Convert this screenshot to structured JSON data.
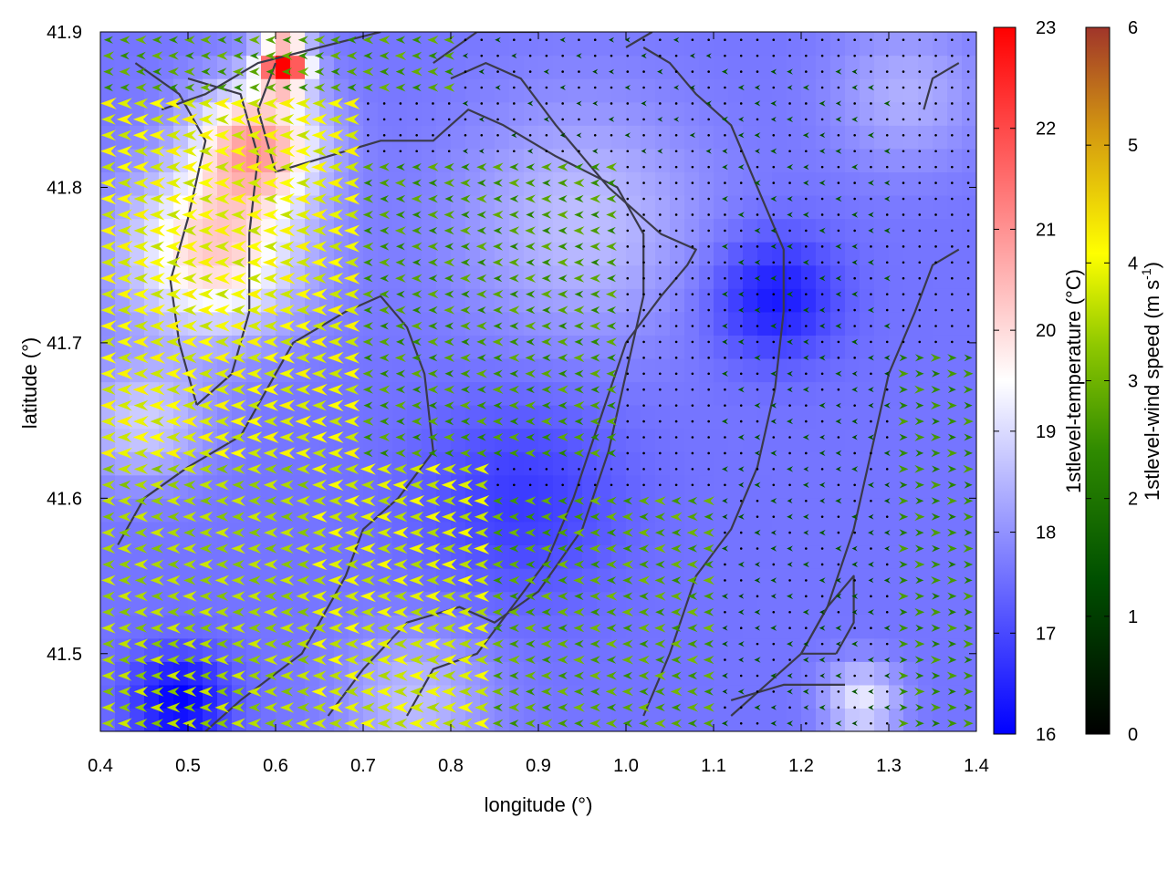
{
  "chart_data": {
    "type": "heatmap",
    "title": "",
    "xlabel": "longitude (°)",
    "ylabel": "latitude (°)",
    "xlim": [
      0.4,
      1.4
    ],
    "ylim": [
      41.45,
      41.9
    ],
    "x_ticks": [
      "0.4",
      "0.5",
      "0.6",
      "0.7",
      "0.8",
      "0.9",
      "1.0",
      "1.1",
      "1.2",
      "1.3",
      "1.4"
    ],
    "y_ticks": [
      "41.5",
      "41.6",
      "41.7",
      "41.8",
      "41.9"
    ],
    "temperature_colorbar": {
      "label": "1stlevel-temperature (°C)",
      "range": [
        16,
        23
      ],
      "ticks": [
        "16",
        "17",
        "18",
        "19",
        "20",
        "21",
        "22",
        "23"
      ],
      "colors": [
        "#0000ff",
        "#ffffff",
        "#ff0000"
      ]
    },
    "wind_colorbar": {
      "label_main": "1stlevel-wind speed (m s",
      "label_sup": "-1",
      "label_end": ")",
      "range": [
        0,
        6
      ],
      "ticks": [
        "0",
        "1",
        "2",
        "3",
        "4",
        "5",
        "6"
      ],
      "colors": [
        "#000000",
        "#006400",
        "#7fbf00",
        "#ffff00",
        "#d4a000",
        "#a03020"
      ]
    },
    "temperature_hotspots": [
      {
        "lon": 0.53,
        "lat": 41.76,
        "value": 20.2,
        "spread": 0.07
      },
      {
        "lon": 0.61,
        "lat": 41.88,
        "value": 22.6,
        "spread": 0.02
      },
      {
        "lon": 0.58,
        "lat": 41.83,
        "value": 20.6,
        "spread": 0.05
      },
      {
        "lon": 0.95,
        "lat": 41.78,
        "value": 18.6,
        "spread": 0.1
      },
      {
        "lon": 1.32,
        "lat": 41.86,
        "value": 18.4,
        "spread": 0.06
      },
      {
        "lon": 1.27,
        "lat": 41.47,
        "value": 19.2,
        "spread": 0.03
      },
      {
        "lon": 0.76,
        "lat": 41.47,
        "value": 18.6,
        "spread": 0.06
      },
      {
        "lon": 0.49,
        "lat": 41.47,
        "value": 16.0,
        "spread": 0.04
      },
      {
        "lon": 1.17,
        "lat": 41.73,
        "value": 16.3,
        "spread": 0.05
      },
      {
        "lon": 0.88,
        "lat": 41.6,
        "value": 16.8,
        "spread": 0.08
      },
      {
        "lon": 0.45,
        "lat": 41.65,
        "value": 18.8,
        "spread": 0.05
      }
    ],
    "temperature_base": 17.6,
    "wind_regions": [
      {
        "lon_range": [
          0.4,
          0.7
        ],
        "lat_range": [
          41.62,
          41.86
        ],
        "speed": 3.8,
        "dir": "west"
      },
      {
        "lon_range": [
          0.4,
          0.65
        ],
        "lat_range": [
          41.45,
          41.62
        ],
        "speed": 3.2,
        "dir": "west"
      },
      {
        "lon_range": [
          0.65,
          0.85
        ],
        "lat_range": [
          41.45,
          41.62
        ],
        "speed": 3.6,
        "dir": "west"
      },
      {
        "lon_range": [
          0.7,
          1.0
        ],
        "lat_range": [
          41.62,
          41.82
        ],
        "speed": 2.2,
        "dir": "west"
      },
      {
        "lon_range": [
          0.85,
          1.1
        ],
        "lat_range": [
          41.45,
          41.6
        ],
        "speed": 2.4,
        "dir": "west"
      },
      {
        "lon_range": [
          1.1,
          1.3
        ],
        "lat_range": [
          41.45,
          41.88
        ],
        "speed": 0.8,
        "dir": "west"
      },
      {
        "lon_range": [
          1.3,
          1.4
        ],
        "lat_range": [
          41.45,
          41.7
        ],
        "speed": 2.0,
        "dir": "east"
      },
      {
        "lon_range": [
          0.8,
          1.1
        ],
        "lat_range": [
          41.82,
          41.9
        ],
        "speed": 0.6,
        "dir": "west"
      },
      {
        "lon_range": [
          0.4,
          0.8
        ],
        "lat_range": [
          41.86,
          41.9
        ],
        "speed": 2.3,
        "dir": "west"
      }
    ],
    "contours": [
      [
        [
          0.51,
          41.66
        ],
        [
          0.49,
          41.7
        ],
        [
          0.48,
          41.74
        ],
        [
          0.5,
          41.78
        ],
        [
          0.52,
          41.83
        ],
        [
          0.49,
          41.86
        ],
        [
          0.44,
          41.88
        ]
      ],
      [
        [
          0.51,
          41.66
        ],
        [
          0.55,
          41.68
        ],
        [
          0.57,
          41.72
        ],
        [
          0.57,
          41.77
        ],
        [
          0.58,
          41.82
        ],
        [
          0.56,
          41.86
        ],
        [
          0.5,
          41.87
        ]
      ],
      [
        [
          0.42,
          41.57
        ],
        [
          0.45,
          41.6
        ],
        [
          0.5,
          41.62
        ],
        [
          0.56,
          41.64
        ],
        [
          0.62,
          41.7
        ],
        [
          0.68,
          41.72
        ],
        [
          0.72,
          41.73
        ],
        [
          0.75,
          41.71
        ],
        [
          0.77,
          41.68
        ],
        [
          0.78,
          41.63
        ],
        [
          0.74,
          41.6
        ],
        [
          0.7,
          41.58
        ],
        [
          0.68,
          41.55
        ],
        [
          0.65,
          41.52
        ],
        [
          0.63,
          41.5
        ],
        [
          0.56,
          41.47
        ],
        [
          0.52,
          41.45
        ]
      ],
      [
        [
          0.66,
          41.46
        ],
        [
          0.7,
          41.49
        ],
        [
          0.75,
          41.52
        ],
        [
          0.81,
          41.53
        ],
        [
          0.85,
          41.52
        ],
        [
          0.9,
          41.54
        ],
        [
          0.95,
          41.58
        ],
        [
          0.98,
          41.63
        ],
        [
          1.0,
          41.68
        ],
        [
          1.02,
          41.73
        ],
        [
          1.02,
          41.77
        ],
        [
          0.99,
          41.8
        ],
        [
          0.92,
          41.82
        ],
        [
          0.86,
          41.84
        ],
        [
          0.82,
          41.85
        ],
        [
          0.78,
          41.83
        ],
        [
          0.72,
          41.83
        ],
        [
          0.66,
          41.82
        ],
        [
          0.6,
          41.81
        ],
        [
          0.58,
          41.85
        ],
        [
          0.6,
          41.88
        ]
      ],
      [
        [
          0.75,
          41.46
        ],
        [
          0.78,
          41.49
        ],
        [
          0.83,
          41.5
        ],
        [
          0.87,
          41.53
        ],
        [
          0.91,
          41.56
        ],
        [
          0.94,
          41.6
        ],
        [
          0.97,
          41.65
        ],
        [
          1.0,
          41.7
        ],
        [
          1.04,
          41.73
        ],
        [
          1.07,
          41.75
        ],
        [
          1.08,
          41.76
        ],
        [
          1.04,
          41.77
        ],
        [
          0.98,
          41.8
        ],
        [
          0.92,
          41.84
        ],
        [
          0.88,
          41.87
        ],
        [
          0.84,
          41.88
        ],
        [
          0.8,
          41.87
        ]
      ],
      [
        [
          1.02,
          41.46
        ],
        [
          1.05,
          41.5
        ],
        [
          1.08,
          41.55
        ],
        [
          1.12,
          41.58
        ],
        [
          1.15,
          41.62
        ],
        [
          1.17,
          41.67
        ],
        [
          1.18,
          41.72
        ],
        [
          1.18,
          41.76
        ],
        [
          1.15,
          41.8
        ],
        [
          1.12,
          41.84
        ],
        [
          1.08,
          41.86
        ],
        [
          1.05,
          41.88
        ],
        [
          1.02,
          41.89
        ]
      ],
      [
        [
          1.12,
          41.46
        ],
        [
          1.16,
          41.48
        ],
        [
          1.2,
          41.5
        ],
        [
          1.23,
          41.53
        ],
        [
          1.26,
          41.58
        ],
        [
          1.28,
          41.63
        ],
        [
          1.3,
          41.68
        ],
        [
          1.33,
          41.72
        ],
        [
          1.35,
          41.75
        ],
        [
          1.38,
          41.76
        ]
      ],
      [
        [
          1.24,
          41.5
        ],
        [
          1.26,
          41.52
        ],
        [
          1.26,
          41.55
        ],
        [
          1.23,
          41.53
        ],
        [
          1.2,
          41.5
        ],
        [
          1.24,
          41.5
        ]
      ],
      [
        [
          1.12,
          41.47
        ],
        [
          1.18,
          41.48
        ],
        [
          1.25,
          41.48
        ]
      ],
      [
        [
          1.34,
          41.85
        ],
        [
          1.35,
          41.87
        ],
        [
          1.38,
          41.88
        ]
      ],
      [
        [
          0.47,
          41.85
        ],
        [
          0.52,
          41.86
        ],
        [
          0.58,
          41.88
        ],
        [
          0.65,
          41.89
        ],
        [
          0.72,
          41.9
        ]
      ],
      [
        [
          0.78,
          41.88
        ],
        [
          0.83,
          41.9
        ],
        [
          0.9,
          41.9
        ]
      ],
      [
        [
          1.0,
          41.89
        ],
        [
          1.03,
          41.9
        ]
      ]
    ]
  }
}
